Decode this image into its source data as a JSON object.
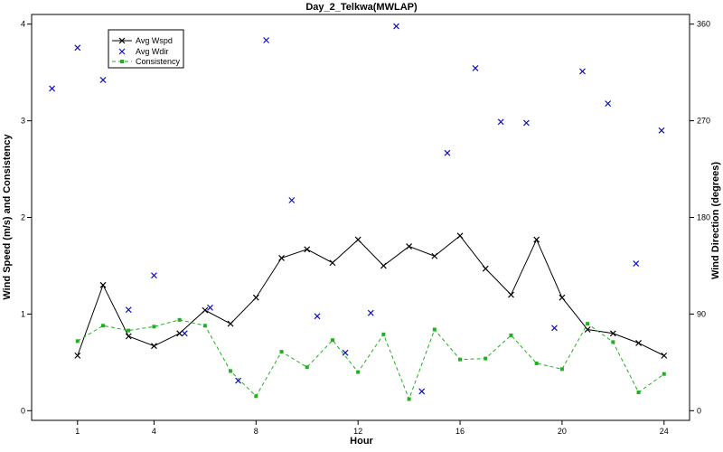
{
  "chart_data": {
    "type": "line",
    "title": "Day_2_Telkwa(MWLAP)",
    "xlabel": "Hour",
    "ylabel": "Wind Speed (m/s) and Consistency",
    "y2label": "Wind Direction (degrees)",
    "xlim": [
      -0.8,
      25
    ],
    "ylim": [
      -0.1,
      4.1
    ],
    "y2lim": [
      -9,
      369
    ],
    "xticks": [
      1,
      4,
      8,
      12,
      16,
      20,
      24
    ],
    "yticks": [
      0,
      1,
      2,
      3,
      4
    ],
    "y2ticks": [
      0,
      90,
      180,
      270,
      360
    ],
    "legend_position": "top-left",
    "grid": false,
    "series": [
      {
        "name": "Avg Wspd",
        "axis": "left",
        "style": "line-x",
        "color": "#000000",
        "x": [
          1,
          2,
          3,
          4,
          5,
          6,
          7,
          8,
          9,
          10,
          11,
          12,
          13,
          14,
          15,
          16,
          17,
          18,
          19,
          20,
          21,
          22,
          23,
          24
        ],
        "y": [
          0.57,
          1.3,
          0.77,
          0.67,
          0.8,
          1.04,
          0.9,
          1.17,
          1.58,
          1.67,
          1.53,
          1.77,
          1.5,
          1.7,
          1.6,
          1.81,
          1.47,
          1.2,
          1.77,
          1.17,
          0.84,
          0.8,
          0.7,
          0.57
        ]
      },
      {
        "name": "Avg Wdir",
        "axis": "right",
        "style": "marker-x",
        "color": "#1010c0",
        "x": [
          0,
          1,
          2,
          3,
          4,
          5.2,
          6.2,
          7.3,
          8.4,
          9.4,
          10.4,
          11.5,
          12.5,
          13.5,
          14.5,
          15.5,
          16.6,
          17.6,
          18.6,
          19.7,
          20.8,
          21.8,
          22.9,
          23.9
        ],
        "y": [
          300,
          338,
          308,
          94,
          126,
          72,
          96,
          28,
          345,
          196,
          88,
          54,
          91,
          358,
          18,
          240,
          319,
          269,
          268,
          77,
          316,
          286,
          137,
          261
        ]
      },
      {
        "name": "Consistency",
        "axis": "left",
        "style": "dashed-square",
        "color": "#20b020",
        "x": [
          1,
          2,
          3,
          4,
          5,
          6,
          7,
          8,
          9,
          10,
          11,
          12,
          13,
          14,
          15,
          16,
          17,
          18,
          19,
          20,
          21,
          22,
          23,
          24
        ],
        "y": [
          0.72,
          0.88,
          0.83,
          0.87,
          0.94,
          0.88,
          0.41,
          0.15,
          0.61,
          0.45,
          0.73,
          0.4,
          0.79,
          0.12,
          0.84,
          0.53,
          0.54,
          0.78,
          0.49,
          0.43,
          0.9,
          0.71,
          0.19,
          0.38
        ]
      }
    ]
  }
}
